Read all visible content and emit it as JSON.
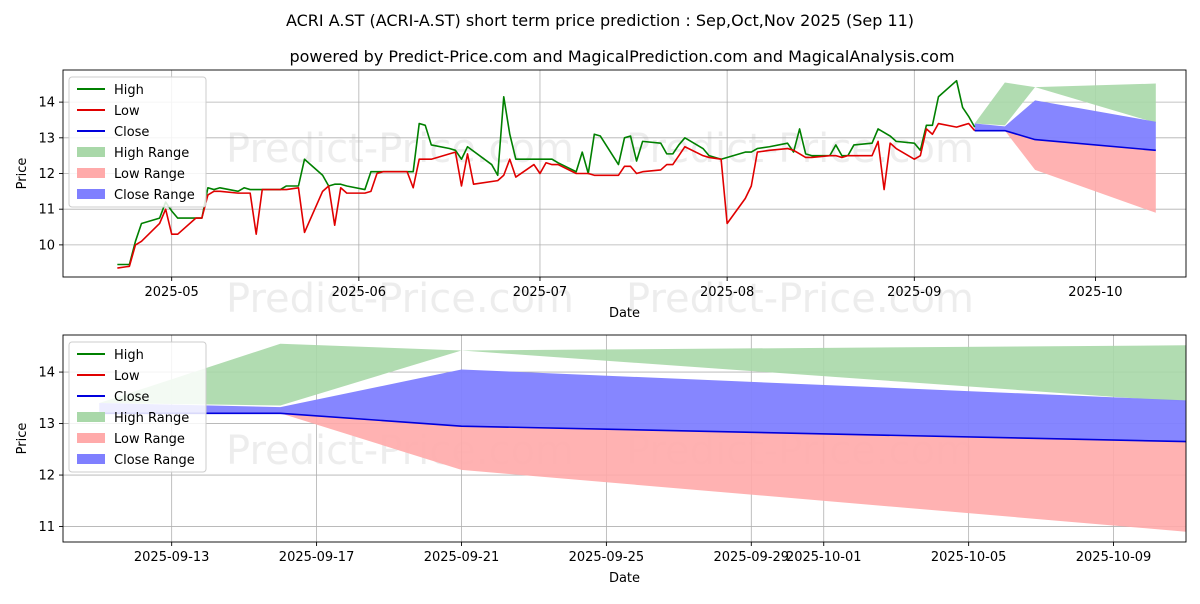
{
  "title": "ACRI A.ST (ACRI-A.ST) short term price prediction : Sep,Oct,Nov 2025 (Sep 11)",
  "subtitle": "powered by Predict-Price.com and MagicalPrediction.com and MagicalAnalysis.com",
  "watermark": "Predict-Price.com",
  "colors": {
    "high": "#008000",
    "low": "#e00000",
    "close": "#0000dd",
    "high_range": "#a9d8a9",
    "low_range": "#ffaaaa",
    "close_range": "#7f7fff"
  },
  "legend": [
    "High",
    "Low",
    "Close",
    "High Range",
    "Low Range",
    "Close Range"
  ],
  "chart_data": [
    {
      "type": "line",
      "xlabel": "Date",
      "ylabel": "Price",
      "xlim": [
        "2025-04-13",
        "2025-10-16"
      ],
      "ylim": [
        9.1,
        14.9
      ],
      "xticks": [
        "2025-05-01",
        "2025-06-01",
        "2025-07-01",
        "2025-08-01",
        "2025-09-01",
        "2025-10-01"
      ],
      "xtick_labels": [
        "2025-05",
        "2025-06",
        "2025-07",
        "2025-08",
        "2025-09",
        "2025-10"
      ],
      "yticks": [
        10,
        11,
        12,
        13,
        14
      ],
      "legend_position": "top-left",
      "grid": true,
      "series": [
        {
          "name": "High",
          "points": [
            [
              "2025-04-22",
              9.45
            ],
            [
              "2025-04-24",
              9.45
            ],
            [
              "2025-04-25",
              10.1
            ],
            [
              "2025-04-26",
              10.6
            ],
            [
              "2025-04-29",
              10.75
            ],
            [
              "2025-04-30",
              11.2
            ],
            [
              "2025-05-01",
              10.95
            ],
            [
              "2025-05-02",
              10.75
            ],
            [
              "2025-05-05",
              10.75
            ],
            [
              "2025-05-06",
              10.75
            ],
            [
              "2025-05-07",
              11.6
            ],
            [
              "2025-05-08",
              11.55
            ],
            [
              "2025-05-09",
              11.6
            ],
            [
              "2025-05-12",
              11.5
            ],
            [
              "2025-05-13",
              11.6
            ],
            [
              "2025-05-14",
              11.55
            ],
            [
              "2025-05-16",
              11.55
            ],
            [
              "2025-05-19",
              11.55
            ],
            [
              "2025-05-20",
              11.65
            ],
            [
              "2025-05-22",
              11.65
            ],
            [
              "2025-05-23",
              12.4
            ],
            [
              "2025-05-26",
              11.95
            ],
            [
              "2025-05-27",
              11.65
            ],
            [
              "2025-05-28",
              11.7
            ],
            [
              "2025-05-29",
              11.7
            ],
            [
              "2025-05-30",
              11.65
            ],
            [
              "2025-06-02",
              11.55
            ],
            [
              "2025-06-03",
              12.05
            ],
            [
              "2025-06-04",
              12.05
            ],
            [
              "2025-06-05",
              12.05
            ],
            [
              "2025-06-09",
              12.05
            ],
            [
              "2025-06-10",
              12.05
            ],
            [
              "2025-06-11",
              13.4
            ],
            [
              "2025-06-12",
              13.35
            ],
            [
              "2025-06-13",
              12.8
            ],
            [
              "2025-06-16",
              12.7
            ],
            [
              "2025-06-17",
              12.65
            ],
            [
              "2025-06-18",
              12.4
            ],
            [
              "2025-06-19",
              12.75
            ],
            [
              "2025-06-23",
              12.25
            ],
            [
              "2025-06-24",
              11.95
            ],
            [
              "2025-06-25",
              14.15
            ],
            [
              "2025-06-26",
              13.1
            ],
            [
              "2025-06-27",
              12.4
            ],
            [
              "2025-06-30",
              12.4
            ],
            [
              "2025-07-01",
              12.4
            ],
            [
              "2025-07-02",
              12.4
            ],
            [
              "2025-07-03",
              12.4
            ],
            [
              "2025-07-04",
              12.3
            ],
            [
              "2025-07-07",
              12.05
            ],
            [
              "2025-07-08",
              12.6
            ],
            [
              "2025-07-09",
              12.0
            ],
            [
              "2025-07-10",
              13.1
            ],
            [
              "2025-07-11",
              13.05
            ],
            [
              "2025-07-14",
              12.25
            ],
            [
              "2025-07-15",
              13.0
            ],
            [
              "2025-07-16",
              13.05
            ],
            [
              "2025-07-17",
              12.35
            ],
            [
              "2025-07-18",
              12.9
            ],
            [
              "2025-07-21",
              12.85
            ],
            [
              "2025-07-22",
              12.55
            ],
            [
              "2025-07-23",
              12.55
            ],
            [
              "2025-07-24",
              12.8
            ],
            [
              "2025-07-25",
              13.0
            ],
            [
              "2025-07-28",
              12.7
            ],
            [
              "2025-07-29",
              12.5
            ],
            [
              "2025-07-31",
              12.4
            ],
            [
              "2025-08-04",
              12.6
            ],
            [
              "2025-08-05",
              12.6
            ],
            [
              "2025-08-06",
              12.7
            ],
            [
              "2025-08-08",
              12.75
            ],
            [
              "2025-08-11",
              12.85
            ],
            [
              "2025-08-12",
              12.6
            ],
            [
              "2025-08-13",
              13.25
            ],
            [
              "2025-08-14",
              12.55
            ],
            [
              "2025-08-15",
              12.5
            ],
            [
              "2025-08-18",
              12.5
            ],
            [
              "2025-08-19",
              12.8
            ],
            [
              "2025-08-20",
              12.5
            ],
            [
              "2025-08-21",
              12.5
            ],
            [
              "2025-08-22",
              12.8
            ],
            [
              "2025-08-25",
              12.85
            ],
            [
              "2025-08-26",
              13.25
            ],
            [
              "2025-08-28",
              13.05
            ],
            [
              "2025-08-29",
              12.9
            ],
            [
              "2025-09-01",
              12.85
            ],
            [
              "2025-09-02",
              12.65
            ],
            [
              "2025-09-03",
              13.35
            ],
            [
              "2025-09-04",
              13.35
            ],
            [
              "2025-09-05",
              14.15
            ],
            [
              "2025-09-08",
              14.6
            ],
            [
              "2025-09-09",
              13.85
            ],
            [
              "2025-09-10",
              13.6
            ],
            [
              "2025-09-11",
              13.3
            ]
          ]
        },
        {
          "name": "Low",
          "points": [
            [
              "2025-04-22",
              9.35
            ],
            [
              "2025-04-24",
              9.4
            ],
            [
              "2025-04-25",
              10.0
            ],
            [
              "2025-04-26",
              10.1
            ],
            [
              "2025-04-29",
              10.6
            ],
            [
              "2025-04-30",
              11.0
            ],
            [
              "2025-05-01",
              10.3
            ],
            [
              "2025-05-02",
              10.3
            ],
            [
              "2025-05-05",
              10.75
            ],
            [
              "2025-05-06",
              10.75
            ],
            [
              "2025-05-07",
              11.4
            ],
            [
              "2025-05-08",
              11.5
            ],
            [
              "2025-05-09",
              11.5
            ],
            [
              "2025-05-12",
              11.45
            ],
            [
              "2025-05-13",
              11.45
            ],
            [
              "2025-05-14",
              11.45
            ],
            [
              "2025-05-15",
              10.3
            ],
            [
              "2025-05-16",
              11.55
            ],
            [
              "2025-05-19",
              11.55
            ],
            [
              "2025-05-20",
              11.55
            ],
            [
              "2025-05-22",
              11.6
            ],
            [
              "2025-05-23",
              10.35
            ],
            [
              "2025-05-26",
              11.5
            ],
            [
              "2025-05-27",
              11.65
            ],
            [
              "2025-05-28",
              10.55
            ],
            [
              "2025-05-29",
              11.6
            ],
            [
              "2025-05-30",
              11.45
            ],
            [
              "2025-06-02",
              11.45
            ],
            [
              "2025-06-03",
              11.5
            ],
            [
              "2025-06-04",
              12.0
            ],
            [
              "2025-06-05",
              12.05
            ],
            [
              "2025-06-09",
              12.05
            ],
            [
              "2025-06-10",
              11.6
            ],
            [
              "2025-06-11",
              12.4
            ],
            [
              "2025-06-12",
              12.4
            ],
            [
              "2025-06-13",
              12.4
            ],
            [
              "2025-06-16",
              12.55
            ],
            [
              "2025-06-17",
              12.6
            ],
            [
              "2025-06-18",
              11.65
            ],
            [
              "2025-06-19",
              12.55
            ],
            [
              "2025-06-20",
              11.7
            ],
            [
              "2025-06-24",
              11.8
            ],
            [
              "2025-06-25",
              11.95
            ],
            [
              "2025-06-26",
              12.4
            ],
            [
              "2025-06-27",
              11.9
            ],
            [
              "2025-06-30",
              12.25
            ],
            [
              "2025-07-01",
              12.0
            ],
            [
              "2025-07-02",
              12.3
            ],
            [
              "2025-07-03",
              12.25
            ],
            [
              "2025-07-04",
              12.25
            ],
            [
              "2025-07-07",
              12.0
            ],
            [
              "2025-07-08",
              12.0
            ],
            [
              "2025-07-09",
              12.0
            ],
            [
              "2025-07-10",
              11.95
            ],
            [
              "2025-07-11",
              11.95
            ],
            [
              "2025-07-14",
              11.95
            ],
            [
              "2025-07-15",
              12.2
            ],
            [
              "2025-07-16",
              12.2
            ],
            [
              "2025-07-17",
              12.0
            ],
            [
              "2025-07-18",
              12.05
            ],
            [
              "2025-07-21",
              12.1
            ],
            [
              "2025-07-22",
              12.25
            ],
            [
              "2025-07-23",
              12.25
            ],
            [
              "2025-07-24",
              12.5
            ],
            [
              "2025-07-25",
              12.75
            ],
            [
              "2025-07-28",
              12.5
            ],
            [
              "2025-07-29",
              12.45
            ],
            [
              "2025-07-31",
              12.4
            ],
            [
              "2025-08-01",
              10.6
            ],
            [
              "2025-08-04",
              11.3
            ],
            [
              "2025-08-05",
              11.65
            ],
            [
              "2025-08-06",
              12.6
            ],
            [
              "2025-08-08",
              12.65
            ],
            [
              "2025-08-11",
              12.7
            ],
            [
              "2025-08-12",
              12.65
            ],
            [
              "2025-08-13",
              12.55
            ],
            [
              "2025-08-14",
              12.45
            ],
            [
              "2025-08-15",
              12.45
            ],
            [
              "2025-08-18",
              12.5
            ],
            [
              "2025-08-19",
              12.5
            ],
            [
              "2025-08-20",
              12.45
            ],
            [
              "2025-08-21",
              12.5
            ],
            [
              "2025-08-22",
              12.5
            ],
            [
              "2025-08-25",
              12.5
            ],
            [
              "2025-08-26",
              12.9
            ],
            [
              "2025-08-27",
              11.55
            ],
            [
              "2025-08-28",
              12.85
            ],
            [
              "2025-08-29",
              12.7
            ],
            [
              "2025-09-01",
              12.4
            ],
            [
              "2025-09-02",
              12.5
            ],
            [
              "2025-09-03",
              13.25
            ],
            [
              "2025-09-04",
              13.1
            ],
            [
              "2025-09-05",
              13.4
            ],
            [
              "2025-09-08",
              13.3
            ],
            [
              "2025-09-09",
              13.35
            ],
            [
              "2025-09-10",
              13.4
            ],
            [
              "2025-09-11",
              13.2
            ]
          ]
        },
        {
          "name": "Close",
          "points": [
            [
              "2025-09-11",
              13.2
            ],
            [
              "2025-09-16",
              13.2
            ],
            [
              "2025-09-21",
              12.95
            ],
            [
              "2025-10-11",
              12.65
            ]
          ]
        },
        {
          "name": "High Range",
          "x": [
            "2025-09-11",
            "2025-09-16",
            "2025-09-21",
            "2025-10-11"
          ],
          "upper": [
            13.4,
            14.55,
            14.42,
            14.52
          ],
          "lower": [
            13.4,
            13.35,
            14.42,
            13.42
          ]
        },
        {
          "name": "Low Range",
          "x": [
            "2025-09-11",
            "2025-09-16",
            "2025-09-21",
            "2025-10-11"
          ],
          "upper": [
            13.2,
            13.22,
            12.95,
            12.65
          ],
          "lower": [
            13.2,
            13.2,
            12.1,
            10.9
          ]
        },
        {
          "name": "Close Range",
          "x": [
            "2025-09-11",
            "2025-09-16",
            "2025-09-21",
            "2025-10-11"
          ],
          "upper": [
            13.4,
            13.32,
            14.05,
            13.45
          ],
          "lower": [
            13.2,
            13.2,
            12.95,
            12.65
          ]
        }
      ]
    },
    {
      "type": "line",
      "xlabel": "Date",
      "ylabel": "Price",
      "xlim": [
        "2025-09-10",
        "2025-10-11"
      ],
      "ylim": [
        10.7,
        14.72
      ],
      "xticks": [
        "2025-09-13",
        "2025-09-17",
        "2025-09-21",
        "2025-09-25",
        "2025-09-29",
        "2025-10-01",
        "2025-10-05",
        "2025-10-09"
      ],
      "xtick_labels": [
        "2025-09-13",
        "2025-09-17",
        "2025-09-21",
        "2025-09-25",
        "2025-09-29",
        "2025-10-01",
        "2025-10-05",
        "2025-10-09"
      ],
      "yticks": [
        11,
        12,
        13,
        14
      ],
      "legend_position": "top-left",
      "grid": true,
      "series": [
        {
          "name": "Close",
          "points": [
            [
              "2025-09-11",
              13.2
            ],
            [
              "2025-09-16",
              13.2
            ],
            [
              "2025-09-21",
              12.95
            ],
            [
              "2025-10-11",
              12.65
            ]
          ]
        },
        {
          "name": "High Range",
          "x": [
            "2025-09-11",
            "2025-09-16",
            "2025-09-21",
            "2025-10-11"
          ],
          "upper": [
            13.4,
            14.55,
            14.42,
            14.52
          ],
          "lower": [
            13.4,
            13.35,
            14.42,
            13.42
          ]
        },
        {
          "name": "Low Range",
          "x": [
            "2025-09-11",
            "2025-09-16",
            "2025-09-21",
            "2025-10-11"
          ],
          "upper": [
            13.2,
            13.22,
            12.95,
            12.65
          ],
          "lower": [
            13.2,
            13.2,
            12.1,
            10.9
          ]
        },
        {
          "name": "Close Range",
          "x": [
            "2025-09-11",
            "2025-09-16",
            "2025-09-21",
            "2025-10-11"
          ],
          "upper": [
            13.4,
            13.32,
            14.05,
            13.45
          ],
          "lower": [
            13.2,
            13.2,
            12.95,
            12.65
          ]
        }
      ]
    }
  ]
}
